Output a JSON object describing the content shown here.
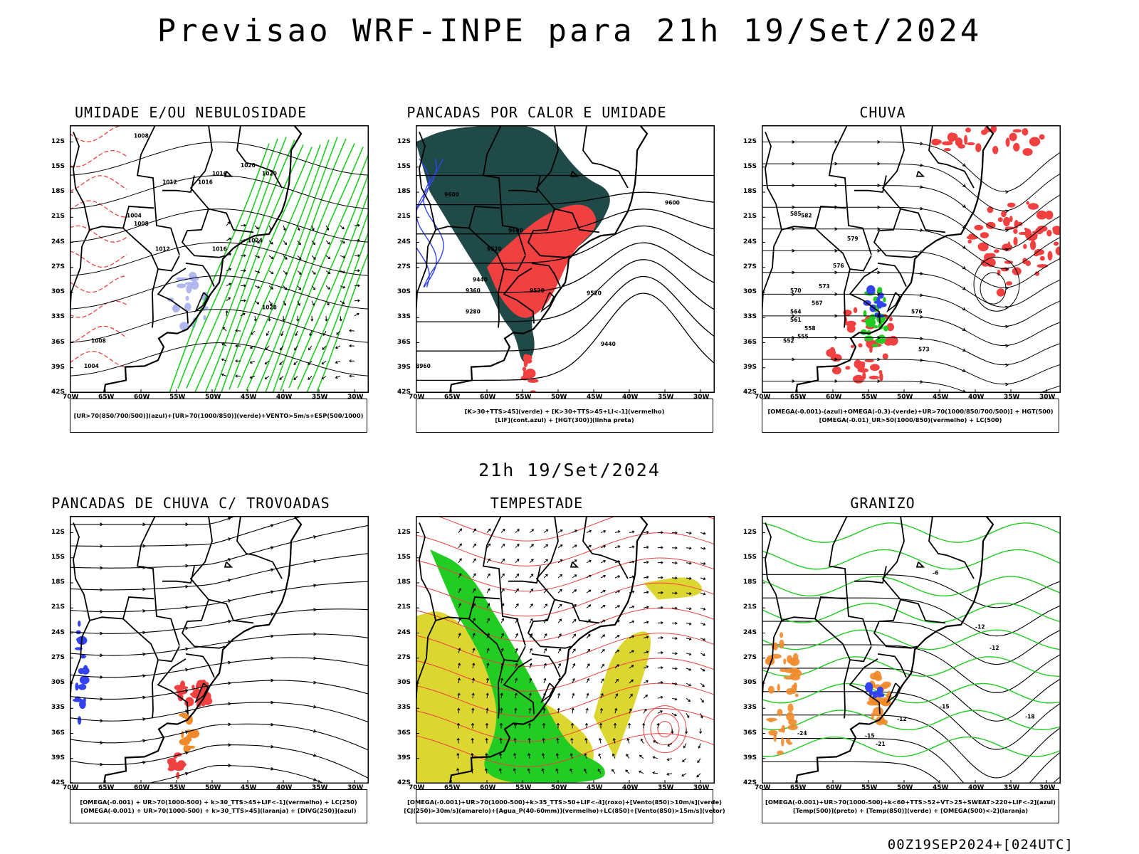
{
  "header": {
    "title": "Previsao WRF-INPE  para 21h 19/Set/2024",
    "valid_time": "21h 19/Set/2024",
    "run_info": "00Z19SEP2024+[024UTC]"
  },
  "axes": {
    "lat_labels": [
      "12S",
      "15S",
      "18S",
      "21S",
      "24S",
      "27S",
      "30S",
      "33S",
      "36S",
      "39S",
      "42S"
    ],
    "lon_labels": [
      "70W",
      "65W",
      "60W",
      "55W",
      "50W",
      "45W",
      "40W",
      "35W",
      "30W"
    ]
  },
  "panels": [
    {
      "id": "umidade",
      "title": "UMIDADE E/OU NEBULOSIDADE",
      "legend": [
        "[UR>70(850/700/500)](azul)+[UR>70(1000/850)](verde)+VENTO>5m/s+ESP(500/1000)"
      ],
      "contour_labels": [
        "1008",
        "1012",
        "1016",
        "1016",
        "1020",
        "1020",
        "1024",
        "1028",
        "1004",
        "1008",
        "1012",
        "1016",
        "1004",
        "1008"
      ]
    },
    {
      "id": "pancadas-calor",
      "title": "PANCADAS POR CALOR E UMIDADE",
      "legend": [
        "[K>30+TTS>45](verde) + [K>30+TTS>45+LI<-1](vermelho)",
        "[LIF](cont.azul) + [HGT(300)](linha preta)"
      ],
      "contour_labels": [
        "9600",
        "9600",
        "9600",
        "9520",
        "9440",
        "9360",
        "9280",
        "9520",
        "9520",
        "9440",
        "8960"
      ]
    },
    {
      "id": "chuva",
      "title": "CHUVA",
      "legend": [
        "[OMEGA(-0.001)-(azul)+OMEGA(-0.3)-(verde)+UR>70(1000/850/700/500)] + HGT(500)",
        "[OMEGA(-0.01)_UR>50(1000/850)(vermelho) + LC(500)"
      ],
      "contour_labels": [
        "585",
        "582",
        "579",
        "576",
        "573",
        "570",
        "567",
        "564",
        "561",
        "558",
        "555",
        "552",
        "576",
        "573"
      ]
    },
    {
      "id": "trovoadas",
      "title": "PANCADAS DE CHUVA C/ TROVOADAS",
      "legend": [
        "[OMEGA(-0.001) + UR>70(1000-500) + k>30_TTS>45+LIF<-1](vermelho) + LC(250)",
        "[OMEGA(-0.001) + UR>70(1000-500) + k>30_TTS>45](laranja) + [DIVG(250)](azul)"
      ],
      "contour_labels": []
    },
    {
      "id": "tempestade",
      "title": "TEMPESTADE",
      "legend": [
        "[OMEGA(-0.001)+UR>70(1000-500)+k>35_TTS>50+LIF<-4](roxo)+[Vento(850)>10m/s](verde)",
        "[CJ(250)>30m/s](amarelo)+[Agua_P(40-60mm)](vermelho)+LC(850)+[Vento(850)>15m/s](vetor)"
      ],
      "contour_labels": []
    },
    {
      "id": "granizo",
      "title": "GRANIZO",
      "legend": [
        "[OMEGA(-0.001)+UR>70(1000-500)+k<60+TTS>52+VT>25+SWEAT>220+LIF<-2](azul)",
        "[Temp(500)](preto) + [Temp(850)](verde) + [OMEGA(500)<-2](laranja)"
      ],
      "contour_labels": [
        "-12",
        "-12",
        "-15",
        "-18",
        "-24",
        "-21",
        "-15",
        "-12",
        "-6"
      ]
    }
  ],
  "colors": {
    "red": "#f04040",
    "green": "#22cc22",
    "blue": "#3344ee",
    "lavender": "#aab0ee",
    "darkteal": "#1f4a48",
    "yellow": "#dcd630",
    "orange": "#f08a2a"
  }
}
